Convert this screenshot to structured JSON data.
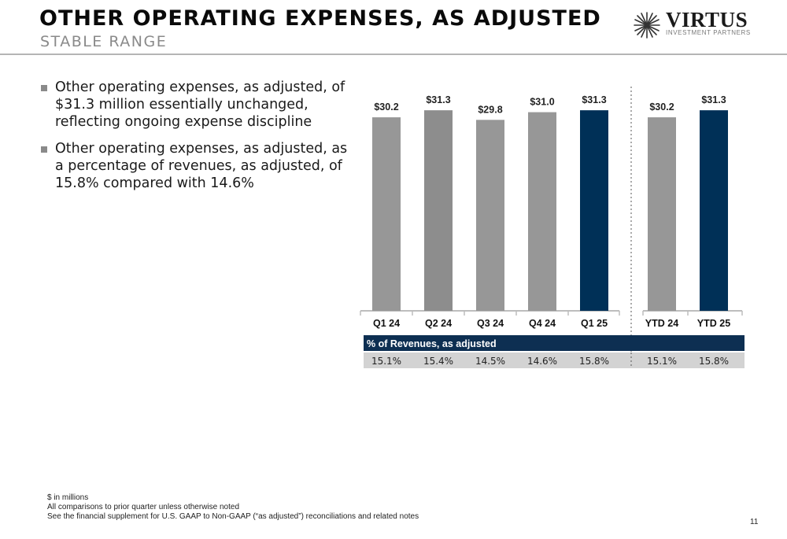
{
  "header": {
    "title": "OTHER OPERATING EXPENSES, AS ADJUSTED",
    "subtitle": "STABLE RANGE",
    "logo_word": "VIRTUS",
    "logo_sub": "INVESTMENT PARTNERS"
  },
  "bullets": [
    "Other operating expenses, as adjusted, of $31.3 million essentially unchanged, reflecting ongoing expense discipline",
    "Other operating expenses, as adjusted, as a percentage of revenues, as adjusted, of 15.8% compared with 14.6%"
  ],
  "chart_data": {
    "type": "bar",
    "categories": [
      "Q1 24",
      "Q2 24",
      "Q3 24",
      "Q4 24",
      "Q1 25",
      "YTD 24",
      "YTD 25"
    ],
    "values": [
      30.2,
      31.3,
      29.8,
      31.0,
      31.3,
      30.2,
      31.3
    ],
    "value_labels": [
      "$30.2",
      "$31.3",
      "$29.8",
      "$31.0",
      "$31.3",
      "$30.2",
      "$31.3"
    ],
    "ylim": [
      0,
      35
    ],
    "grid": false,
    "colors": {
      "prior": "#979797",
      "q2": "#8d8d8d",
      "current": "#003057"
    },
    "highlight": [
      "Q1 25",
      "YTD 25"
    ],
    "table": {
      "header": "% of Revenues, as adjusted",
      "values": [
        "15.1%",
        "15.4%",
        "14.5%",
        "14.6%",
        "15.8%",
        "15.1%",
        "15.8%"
      ],
      "header_color": "#0d2f52",
      "row_color": "#d3d3d3"
    }
  },
  "footnotes": [
    "$ in millions",
    "All comparisons to prior quarter unless otherwise noted",
    "See the financial supplement for U.S. GAAP to Non-GAAP (“as adjusted”) reconciliations and related notes"
  ],
  "page_number": "11"
}
